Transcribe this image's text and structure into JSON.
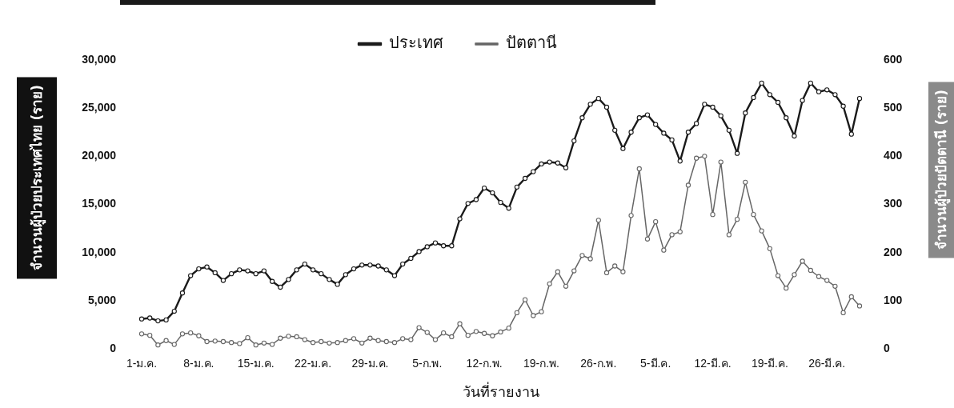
{
  "chart_data": {
    "type": "line",
    "xlabel": "วันที่รายงาน",
    "ylabel": "จำนวนผู้ป่วยประเทศไทย (ราย)",
    "y2label": "จำนวนผู้ป่วยปัตตานี (ราย)",
    "categories": [
      "1-ม.ค.",
      null,
      null,
      null,
      null,
      null,
      null,
      "8-ม.ค.",
      null,
      null,
      null,
      null,
      null,
      null,
      "15-ม.ค.",
      null,
      null,
      null,
      null,
      null,
      null,
      "22-ม.ค.",
      null,
      null,
      null,
      null,
      null,
      null,
      "29-ม.ค.",
      null,
      null,
      null,
      null,
      null,
      null,
      "5-ก.พ.",
      null,
      null,
      null,
      null,
      null,
      null,
      "12-ก.พ.",
      null,
      null,
      null,
      null,
      null,
      null,
      "19-ก.พ.",
      null,
      null,
      null,
      null,
      null,
      null,
      "26-ก.พ.",
      null,
      null,
      null,
      null,
      null,
      null,
      "5-มี.ค.",
      null,
      null,
      null,
      null,
      null,
      null,
      "12-มี.ค.",
      null,
      null,
      null,
      null,
      null,
      null,
      "19-มี.ค.",
      null,
      null,
      null,
      null,
      null,
      null,
      "26-มี.ค.",
      null,
      null,
      null,
      null
    ],
    "series": [
      {
        "name": "ประเทศ",
        "color": "#1a1a1a",
        "values": [
          3100,
          3200,
          2900,
          3000,
          3900,
          5800,
          7600,
          8300,
          8500,
          7900,
          7100,
          7800,
          8200,
          8100,
          7800,
          8100,
          7000,
          6400,
          7200,
          8200,
          8800,
          8200,
          7800,
          7200,
          6700,
          7700,
          8300,
          8700,
          8700,
          8600,
          8200,
          7600,
          8800,
          9400,
          10100,
          10600,
          11000,
          10700,
          10700,
          13500,
          15100,
          15500,
          16700,
          16200,
          15200,
          14600,
          16800,
          17700,
          18400,
          19200,
          19400,
          19300,
          18800,
          21600,
          24000,
          25400,
          26000,
          25100,
          22700,
          20800,
          22500,
          24000,
          24300,
          23300,
          22400,
          21700,
          19500,
          22500,
          23400,
          25400,
          25100,
          24200,
          22700,
          20300,
          24500,
          26100,
          27600,
          26400,
          25600,
          24000,
          22100,
          25800,
          27600,
          26700,
          26900,
          26400,
          25200,
          22300,
          26000
        ]
      },
      {
        "name": "ปัตตานี",
        "color": "#666666",
        "axis": "y2",
        "values": [
          31,
          28,
          8,
          17,
          9,
          31,
          33,
          27,
          15,
          16,
          15,
          13,
          11,
          23,
          8,
          12,
          9,
          22,
          26,
          25,
          19,
          13,
          15,
          12,
          13,
          17,
          21,
          12,
          22,
          17,
          15,
          13,
          21,
          19,
          44,
          34,
          19,
          33,
          25,
          52,
          28,
          36,
          32,
          27,
          35,
          43,
          75,
          102,
          69,
          77,
          135,
          160,
          130,
          162,
          194,
          187,
          267,
          158,
          172,
          160,
          277,
          374,
          228,
          264,
          205,
          237,
          243,
          340,
          396,
          400,
          279,
          388,
          237,
          269,
          346,
          279,
          245,
          208,
          152,
          126,
          154,
          182,
          163,
          150,
          142,
          130,
          75,
          108,
          89
        ]
      }
    ],
    "ylim": [
      0,
      30000
    ],
    "yticks": [
      {
        "value": 0,
        "label": "0"
      },
      {
        "value": 5000,
        "label": "5,000"
      },
      {
        "value": 10000,
        "label": "10,000"
      },
      {
        "value": 15000,
        "label": "15,000"
      },
      {
        "value": 20000,
        "label": "20,000"
      },
      {
        "value": 25000,
        "label": "25,000"
      },
      {
        "value": 30000,
        "label": "30,000"
      }
    ],
    "y2lim": [
      0,
      600
    ],
    "y2ticks": [
      0,
      100,
      200,
      300,
      400,
      500,
      600
    ],
    "legend": "top",
    "grid": false,
    "marker": "circle",
    "line_style": "solid"
  }
}
